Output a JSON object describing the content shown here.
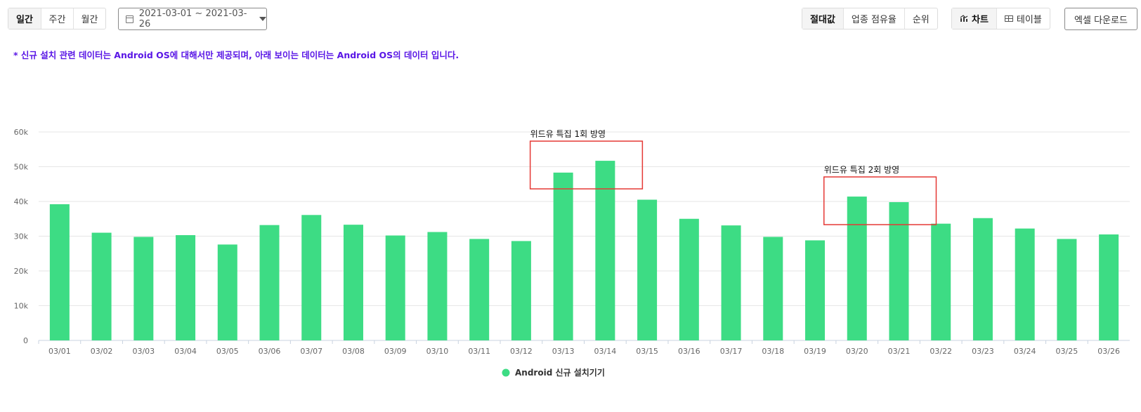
{
  "toolbar": {
    "period_tabs": [
      "일간",
      "주간",
      "월간"
    ],
    "date_range": "2021-03-01 ~ 2021-03-26",
    "value_tabs": [
      "절대값",
      "업종 점유율",
      "순위"
    ],
    "view_chart": "차트",
    "view_table": "테이블",
    "excel_label": "엑셀 다운로드"
  },
  "notice": "* 신규 설치 관련 데이터는 Android OS에 대해서만 제공되며, 아래 보이는 데이터는 Android OS의 데이터 입니다.",
  "colors": {
    "bar": "#3ddc84",
    "annotation_box": "#e53935",
    "notice": "#5a17e6"
  },
  "chart_data": {
    "type": "bar",
    "categories": [
      "03/01",
      "03/02",
      "03/03",
      "03/04",
      "03/05",
      "03/06",
      "03/07",
      "03/08",
      "03/09",
      "03/10",
      "03/11",
      "03/12",
      "03/13",
      "03/14",
      "03/15",
      "03/16",
      "03/17",
      "03/18",
      "03/19",
      "03/20",
      "03/21",
      "03/22",
      "03/23",
      "03/24",
      "03/25",
      "03/26"
    ],
    "series": [
      {
        "name": "Android 신규 설치기기",
        "values": [
          39200,
          31000,
          29800,
          30300,
          27600,
          33200,
          36100,
          33300,
          30200,
          31200,
          29200,
          28600,
          48300,
          51700,
          40500,
          35000,
          33100,
          29800,
          28800,
          41400,
          39800,
          33600,
          35200,
          32200,
          29200,
          30500
        ]
      }
    ],
    "ylim": [
      0,
      60000
    ],
    "yticks": [
      "0",
      "10k",
      "20k",
      "30k",
      "40k",
      "50k",
      "60k"
    ],
    "grid": "horizontal",
    "legend_position": "bottom-center",
    "annotations": [
      {
        "text": "위드유 특집 1회 방영",
        "categories": [
          "03/13",
          "03/14"
        ]
      },
      {
        "text": "위드유 특집 2회 방영",
        "categories": [
          "03/20",
          "03/21"
        ]
      }
    ]
  }
}
